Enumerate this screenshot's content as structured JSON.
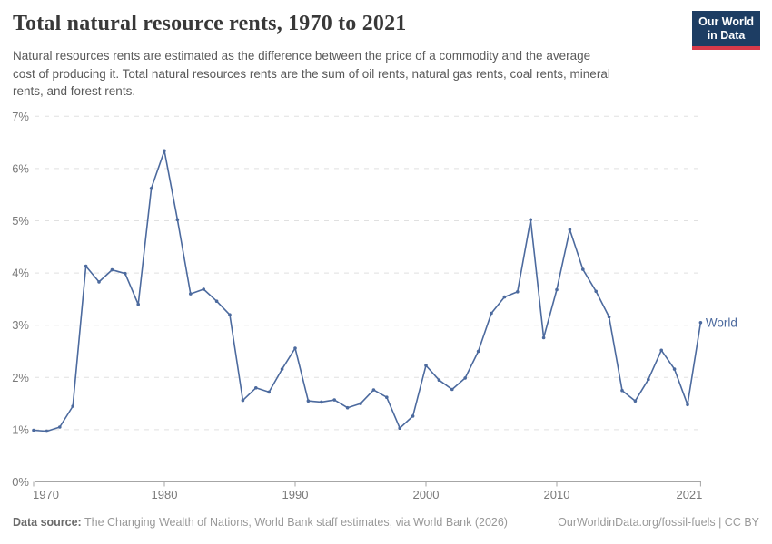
{
  "header": {
    "title": "Total natural resource rents, 1970 to 2021",
    "subtitle": "Natural resources rents are estimated as the difference between the price of a commodity and the average\ncost of producing it. Total natural resources rents are the sum of oil rents, natural gas rents, coal rents, mineral\nrents, and forest rents.",
    "logo_line1": "Our World",
    "logo_line2": "in Data",
    "logo_bg_color": "#1d3d63",
    "logo_accent_color": "#d73a4a"
  },
  "chart_data": {
    "type": "line",
    "title": "Total natural resource rents, 1970 to 2021",
    "xlabel": "",
    "ylabel": "",
    "ylim": [
      0,
      7
    ],
    "grid": "horizontal-dashed",
    "legend_position": "end-of-line",
    "y_tick_labels": [
      "0%",
      "1%",
      "2%",
      "3%",
      "4%",
      "5%",
      "6%",
      "7%"
    ],
    "x_tick_years": [
      1970,
      1980,
      1990,
      2000,
      2010,
      2021
    ],
    "x_tick_labels": [
      "1970",
      "1980",
      "1990",
      "2000",
      "2010",
      "2021"
    ],
    "series": [
      {
        "name": "World",
        "color": "#4c6a9e",
        "x": [
          1970,
          1971,
          1972,
          1973,
          1974,
          1975,
          1976,
          1977,
          1978,
          1979,
          1980,
          1981,
          1982,
          1983,
          1984,
          1985,
          1986,
          1987,
          1988,
          1989,
          1990,
          1991,
          1992,
          1993,
          1994,
          1995,
          1996,
          1997,
          1998,
          1999,
          2000,
          2001,
          2002,
          2003,
          2004,
          2005,
          2006,
          2007,
          2008,
          2009,
          2010,
          2011,
          2012,
          2013,
          2014,
          2015,
          2016,
          2017,
          2018,
          2019,
          2020,
          2021
        ],
        "values": [
          0.99,
          0.97,
          1.05,
          1.45,
          4.13,
          3.83,
          4.06,
          3.99,
          3.4,
          5.62,
          6.34,
          5.02,
          3.6,
          3.69,
          3.46,
          3.2,
          1.56,
          1.8,
          1.72,
          2.16,
          2.56,
          1.55,
          1.53,
          1.57,
          1.42,
          1.5,
          1.76,
          1.62,
          1.03,
          1.26,
          2.23,
          1.95,
          1.77,
          1.99,
          2.5,
          3.23,
          3.54,
          3.64,
          5.02,
          2.76,
          3.68,
          4.83,
          4.07,
          3.65,
          3.16,
          1.75,
          1.55,
          1.96,
          2.52,
          2.16,
          1.48,
          3.05
        ]
      }
    ],
    "end_label": "World",
    "colors": {
      "line": "#4c6a9e",
      "gridline": "#e0e0e0",
      "axis": "#a6a6a6",
      "tick_label": "#7a7a7a"
    }
  },
  "footer": {
    "source_label": "Data source:",
    "source_text": "The Changing Wealth of Nations, World Bank staff estimates, via World Bank (2026)",
    "link_text": "OurWorldinData.org/fossil-fuels | CC BY"
  }
}
